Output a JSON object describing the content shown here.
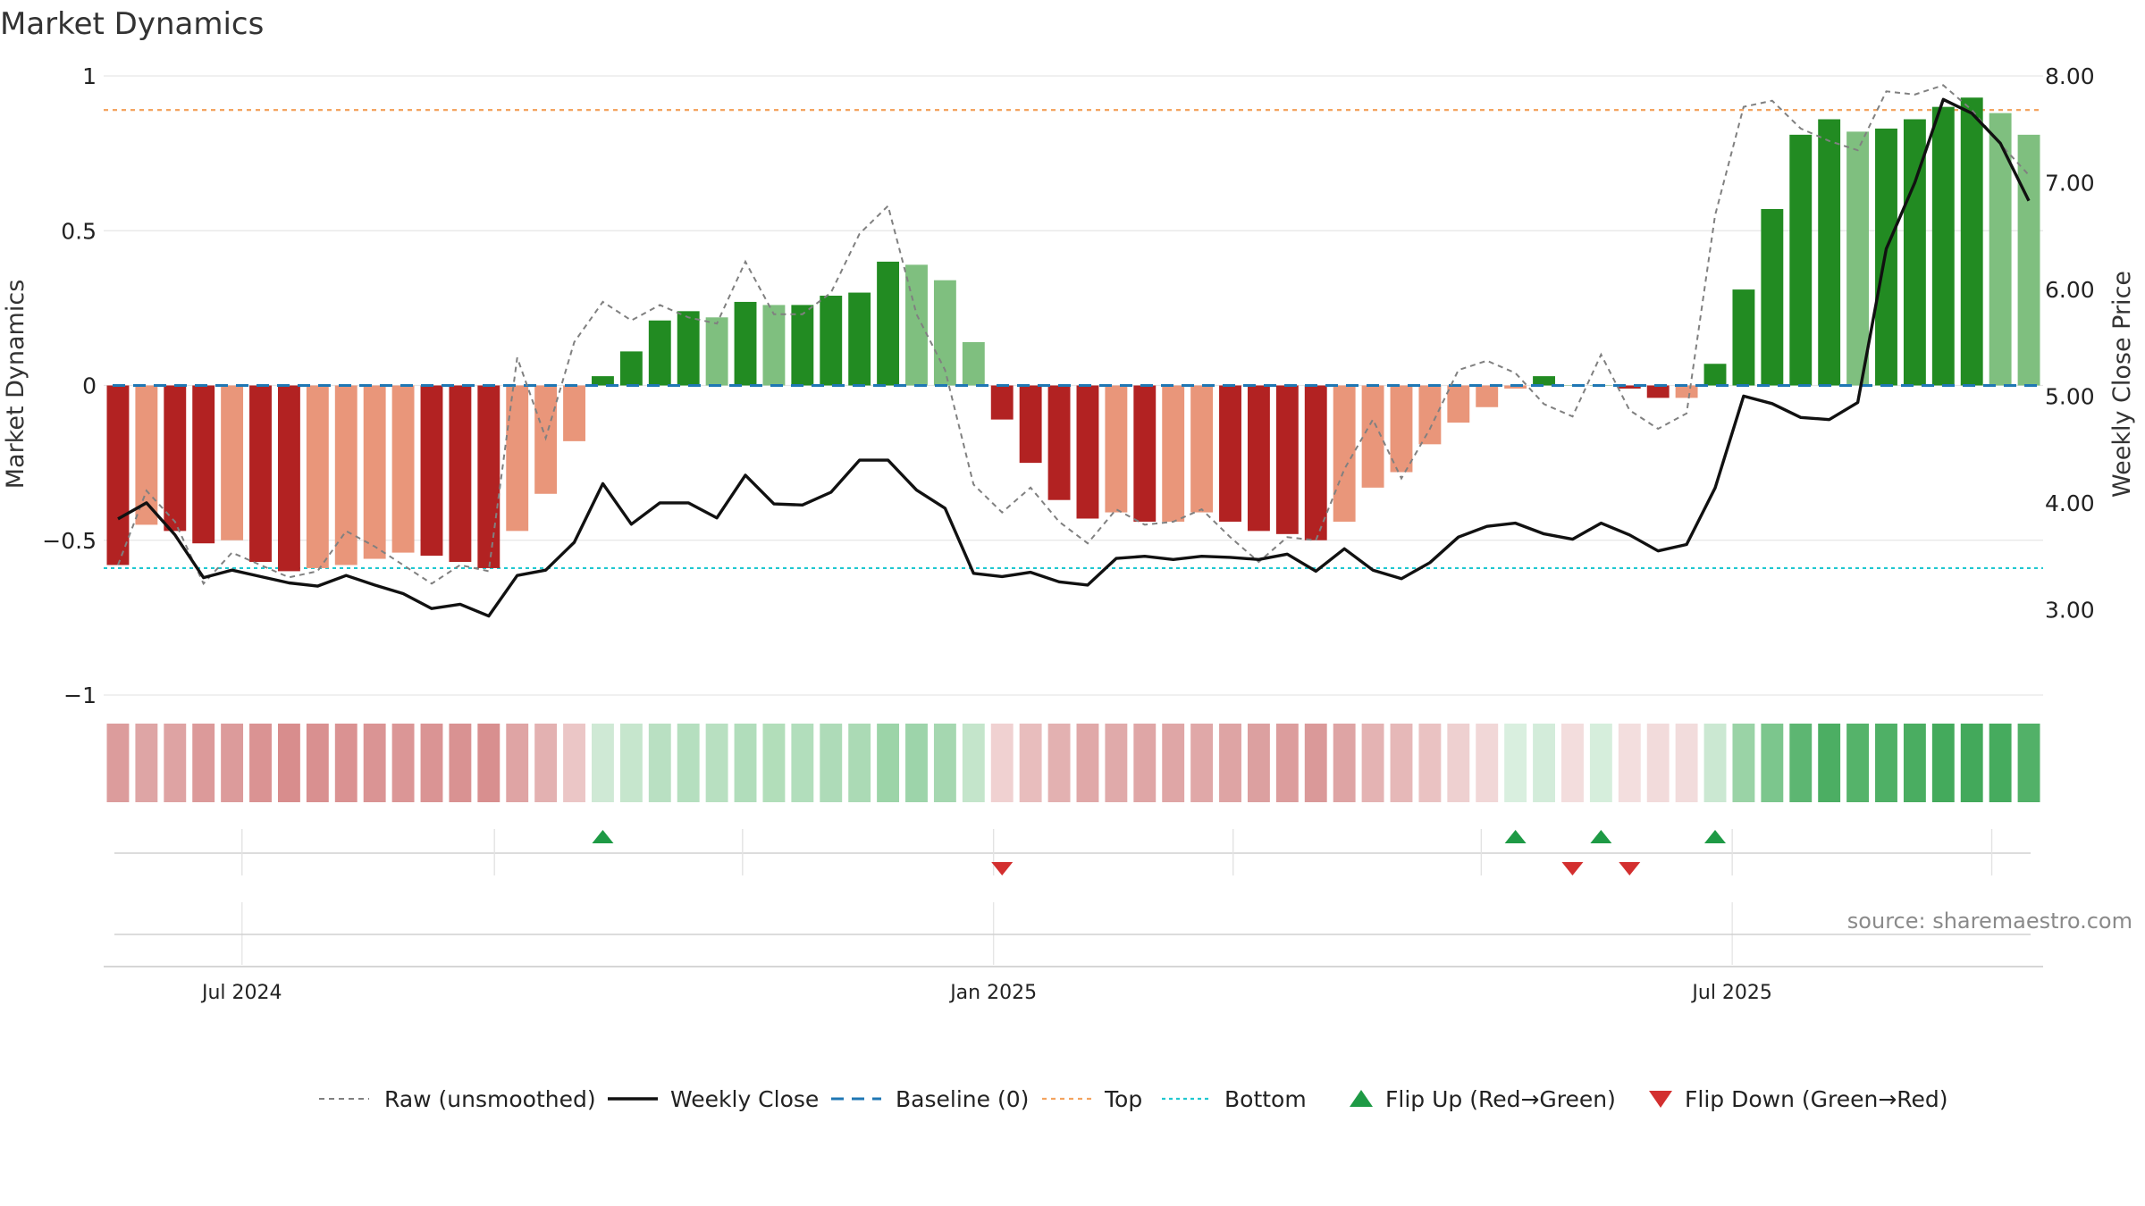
{
  "chart_data": {
    "type": "bar",
    "title": "Market Dynamics",
    "source": "source: sharemaestro.com",
    "ylabel_left": "Market Dynamics",
    "ylabel_right": "Weekly Close Price",
    "ylim_left": [
      -1,
      1
    ],
    "ylim_right": [
      2.2,
      8.0
    ],
    "left_ticks": [
      {
        "v": 1,
        "label": "1"
      },
      {
        "v": 0.5,
        "label": "0.5"
      },
      {
        "v": 0,
        "label": "0"
      },
      {
        "v": -0.5,
        "label": "−0.5"
      },
      {
        "v": -1,
        "label": "−1"
      }
    ],
    "right_ticks": [
      {
        "v": 8,
        "label": "8.00"
      },
      {
        "v": 7,
        "label": "7.00"
      },
      {
        "v": 6,
        "label": "6.00"
      },
      {
        "v": 5,
        "label": "5.00"
      },
      {
        "v": 4,
        "label": "4.00"
      },
      {
        "v": 3,
        "label": "3.00"
      }
    ],
    "x_ticks": [
      {
        "index": 4.35,
        "label": "Jul 2024"
      },
      {
        "index": 30.7,
        "label": "Jan 2025"
      },
      {
        "index": 56.6,
        "label": "Jul 2025"
      }
    ],
    "minor_ticks": [
      4.35,
      13.2,
      21.9,
      30.7,
      39.1,
      47.8,
      56.6,
      65.7
    ],
    "top_line": 0.89,
    "bottom_line": -0.59,
    "baseline": 0,
    "bars": [
      -0.58,
      -0.45,
      -0.47,
      -0.51,
      -0.5,
      -0.57,
      -0.6,
      -0.59,
      -0.58,
      -0.56,
      -0.54,
      -0.55,
      -0.57,
      -0.59,
      -0.47,
      -0.35,
      -0.18,
      0.03,
      0.11,
      0.21,
      0.24,
      0.22,
      0.27,
      0.26,
      0.26,
      0.29,
      0.3,
      0.4,
      0.39,
      0.34,
      0.14,
      -0.11,
      -0.25,
      -0.37,
      -0.43,
      -0.41,
      -0.44,
      -0.44,
      -0.41,
      -0.44,
      -0.47,
      -0.48,
      -0.5,
      -0.44,
      -0.33,
      -0.28,
      -0.19,
      -0.12,
      -0.07,
      -0.01,
      0.03,
      0.0,
      0.0,
      -0.01,
      -0.04,
      -0.04,
      0.07,
      0.31,
      0.57,
      0.81,
      0.86,
      0.82,
      0.83,
      0.86,
      0.9,
      0.93,
      0.88,
      0.81
    ],
    "bar_shades": [
      "dark",
      "light",
      "dark",
      "dark",
      "light",
      "dark",
      "dark",
      "light",
      "light",
      "light",
      "light",
      "dark",
      "dark",
      "dark",
      "light",
      "light",
      "light",
      "dark",
      "dark",
      "dark",
      "dark",
      "light",
      "dark",
      "light",
      "dark",
      "dark",
      "dark",
      "dark",
      "light",
      "light",
      "light",
      "dark",
      "dark",
      "dark",
      "dark",
      "light",
      "dark",
      "light",
      "light",
      "dark",
      "dark",
      "dark",
      "dark",
      "light",
      "light",
      "light",
      "light",
      "light",
      "light",
      "light",
      "dark",
      "light",
      "light",
      "dark",
      "dark",
      "light",
      "dark",
      "dark",
      "dark",
      "dark",
      "dark",
      "light",
      "dark",
      "dark",
      "dark",
      "dark",
      "light",
      "light"
    ],
    "raw": [
      -0.58,
      -0.34,
      -0.44,
      -0.64,
      -0.54,
      -0.58,
      -0.62,
      -0.6,
      -0.47,
      -0.52,
      -0.58,
      -0.64,
      -0.58,
      -0.6,
      0.09,
      -0.17,
      0.14,
      0.27,
      0.21,
      0.26,
      0.22,
      0.2,
      0.4,
      0.23,
      0.23,
      0.3,
      0.49,
      0.58,
      0.23,
      0.05,
      -0.32,
      -0.41,
      -0.33,
      -0.44,
      -0.51,
      -0.4,
      -0.45,
      -0.44,
      -0.4,
      -0.49,
      -0.57,
      -0.49,
      -0.5,
      -0.27,
      -0.11,
      -0.3,
      -0.14,
      0.05,
      0.08,
      0.04,
      -0.06,
      -0.1,
      0.1,
      -0.08,
      -0.14,
      -0.09,
      0.55,
      0.9,
      0.92,
      0.83,
      0.79,
      0.76,
      0.95,
      0.94,
      0.97,
      0.89,
      0.78,
      0.68
    ],
    "close": [
      3.85,
      4.0,
      3.7,
      3.3,
      3.37,
      3.31,
      3.25,
      3.22,
      3.32,
      3.23,
      3.15,
      3.01,
      3.05,
      2.94,
      3.32,
      3.37,
      3.63,
      4.18,
      3.8,
      4.0,
      4.0,
      3.86,
      4.26,
      3.99,
      3.98,
      4.1,
      4.4,
      4.4,
      4.12,
      3.95,
      3.34,
      3.31,
      3.35,
      3.26,
      3.23,
      3.48,
      3.5,
      3.47,
      3.5,
      3.49,
      3.47,
      3.52,
      3.36,
      3.57,
      3.37,
      3.29,
      3.44,
      3.68,
      3.78,
      3.81,
      3.71,
      3.66,
      3.81,
      3.7,
      3.55,
      3.61,
      4.14,
      5.0,
      4.93,
      4.8,
      4.78,
      4.94,
      6.38,
      7.0,
      7.78,
      7.65,
      7.37,
      6.83
    ],
    "strip_colors": [
      "#dc9c9c",
      "#dea5a5",
      "#dea3a3",
      "#dc9a9a",
      "#dc9b9b",
      "#da9393",
      "#d88d8d",
      "#d99090",
      "#da9292",
      "#da9494",
      "#db9696",
      "#da9494",
      "#d99292",
      "#d88f8f",
      "#dfa4a4",
      "#e3b1b1",
      "#ebc6c6",
      "#cfe9d5",
      "#c6e6cd",
      "#b9e0c2",
      "#b5dfbf",
      "#b8e0c1",
      "#b1ddbb",
      "#b2deba",
      "#b2debc",
      "#aedbb8",
      "#abdab5",
      "#9cd4a8",
      "#9dd4aa",
      "#a5d7b0",
      "#c4e5cb",
      "#f0d1d1",
      "#e8bdbd",
      "#e3b1b1",
      "#e0a8a8",
      "#e0aaaa",
      "#dfa6a6",
      "#dfa6a6",
      "#e0a8a8",
      "#dea4a4",
      "#dca0a0",
      "#dc9d9d",
      "#da9999",
      "#dea4a4",
      "#e4b3b3",
      "#e6b8b8",
      "#eac2c2",
      "#eed0d0",
      "#f1d7d7",
      "#d9efdf",
      "#d3ecda",
      "#f3dddd",
      "#d6eedc",
      "#f3dede",
      "#f2dbdb",
      "#f2dcdc",
      "#cbe8d2",
      "#9ad3a6",
      "#7cc68d",
      "#5db672",
      "#4cae63",
      "#55b36a",
      "#4fb066",
      "#4aad61",
      "#44aa5c",
      "#43a95b",
      "#46ab5e",
      "#52b168"
    ],
    "flips_up": [
      17,
      49,
      52,
      56
    ],
    "flips_down": [
      31,
      51,
      53
    ],
    "legend": [
      {
        "key": "raw",
        "label": "Raw (unsmoothed)"
      },
      {
        "key": "close",
        "label": "Weekly Close"
      },
      {
        "key": "baseline",
        "label": "Baseline (0)"
      },
      {
        "key": "top",
        "label": "Top"
      },
      {
        "key": "bottom",
        "label": "Bottom"
      },
      {
        "key": "flipup",
        "label": "Flip Up (Red→Green)"
      },
      {
        "key": "flipdown",
        "label": "Flip Down (Green→Red)"
      }
    ],
    "colors": {
      "pos_dark": "#228b22",
      "pos_light": "#7fbf7f",
      "neg_dark": "#b22222",
      "neg_light": "#e9967a",
      "close": "#111111",
      "raw": "#808080",
      "baseline": "#1f77b4",
      "top": "#f4a460",
      "bottom": "#20c8d0",
      "flip_up": "#1e9a45",
      "flip_down": "#d32f2f",
      "grid": "#e6e6e6",
      "axis": "#c8c8c8",
      "source": "#8a8a8a"
    }
  }
}
